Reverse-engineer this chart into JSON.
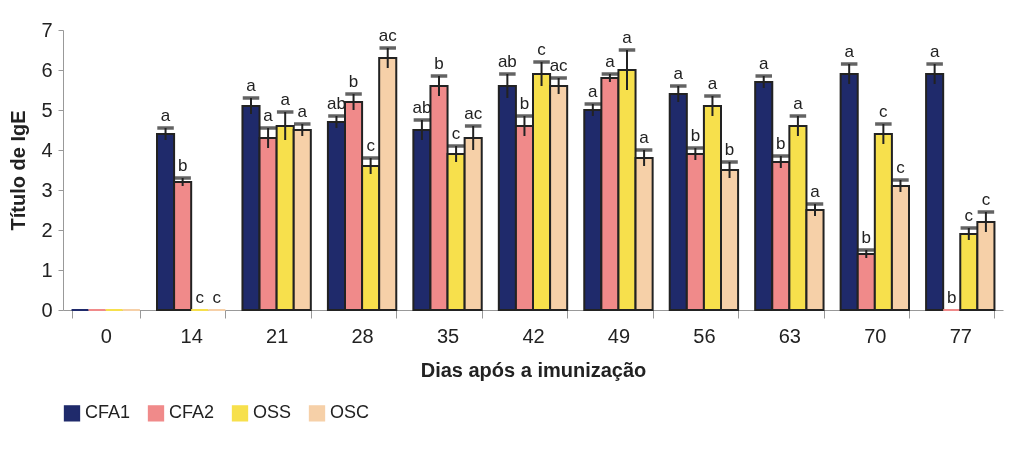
{
  "chart_data": {
    "type": "bar",
    "xlabel": "Dias após a imunização",
    "ylabel": "Título de IgE",
    "categories": [
      "0",
      "14",
      "21",
      "28",
      "35",
      "42",
      "49",
      "56",
      "63",
      "70",
      "77"
    ],
    "series": [
      {
        "name": "CFA1",
        "color": "#1f2a6b",
        "values": [
          0,
          4.4,
          5.1,
          4.7,
          4.5,
          5.6,
          5.0,
          5.4,
          5.7,
          5.9,
          5.9
        ],
        "errors": [
          null,
          0.15,
          0.2,
          0.15,
          0.25,
          0.3,
          0.15,
          0.2,
          0.15,
          0.25,
          0.25
        ],
        "value_labels": [
          null,
          "a",
          "a",
          "ab",
          "ab",
          "ab",
          "a",
          "a",
          "a",
          "a",
          "a"
        ]
      },
      {
        "name": "CFA2",
        "color": "#f08a8a",
        "values": [
          0,
          3.2,
          4.3,
          5.2,
          5.6,
          4.6,
          5.8,
          3.9,
          3.7,
          1.4,
          0
        ],
        "errors": [
          null,
          0.1,
          0.25,
          0.2,
          0.25,
          0.25,
          0.1,
          0.15,
          0.15,
          0.1,
          null
        ],
        "value_labels": [
          null,
          "b",
          "a",
          "b",
          "b",
          "b",
          "a",
          "b",
          "b",
          "b",
          "b"
        ]
      },
      {
        "name": "OSS",
        "color": "#f7e04c",
        "values": [
          0,
          0,
          4.6,
          3.6,
          3.9,
          5.9,
          6.0,
          5.1,
          4.6,
          4.4,
          1.9
        ],
        "errors": [
          null,
          null,
          0.35,
          0.2,
          0.2,
          0.3,
          0.5,
          0.25,
          0.25,
          0.25,
          0.15
        ],
        "value_labels": [
          null,
          "c",
          "a",
          "c",
          "c",
          "c",
          "a",
          "a",
          "a",
          "c",
          "c"
        ]
      },
      {
        "name": "OSC",
        "color": "#f6d0a8",
        "values": [
          0,
          0,
          4.5,
          6.3,
          4.3,
          5.6,
          3.8,
          3.5,
          2.5,
          3.1,
          2.2
        ],
        "errors": [
          null,
          null,
          0.15,
          0.25,
          0.3,
          0.2,
          0.2,
          0.2,
          0.15,
          0.15,
          0.25
        ],
        "value_labels": [
          null,
          "c",
          "a",
          "ac",
          "ac",
          "ac",
          "a",
          "b",
          "a",
          "c",
          "c"
        ]
      }
    ],
    "ylim": [
      0,
      7
    ],
    "yticks": [
      0,
      1,
      2,
      3,
      4,
      5,
      6,
      7
    ],
    "grid": false,
    "legend": "bottom"
  }
}
